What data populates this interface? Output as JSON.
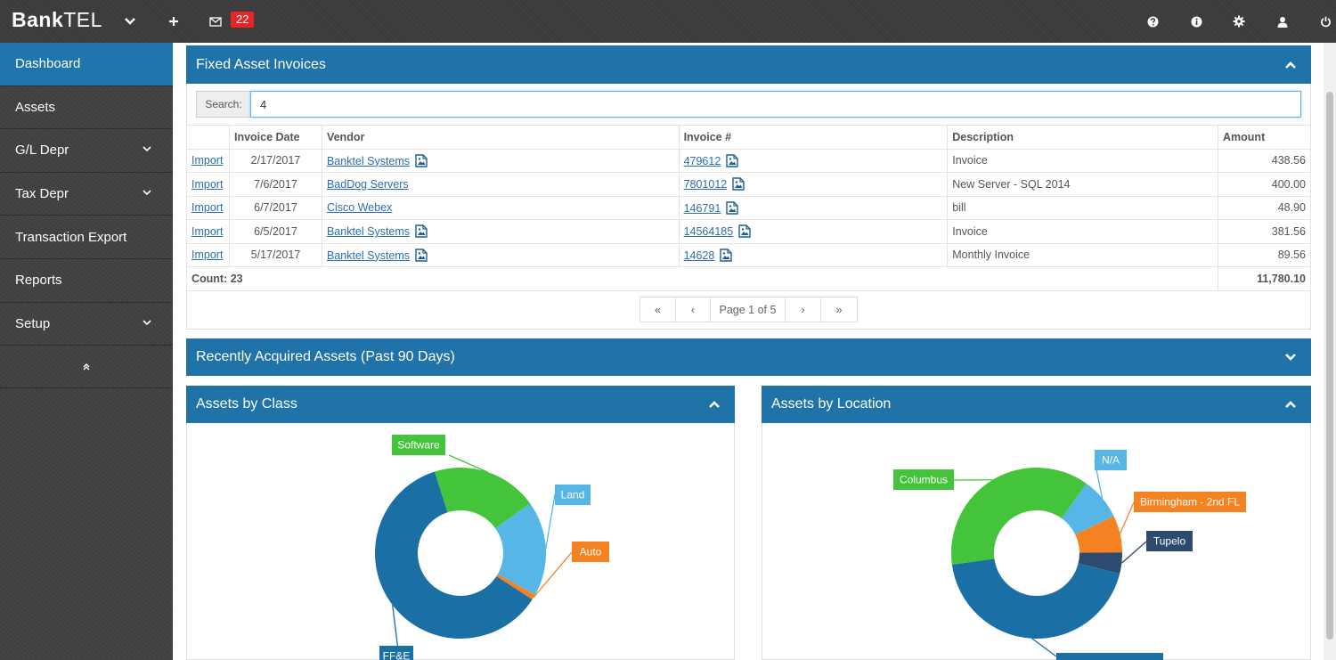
{
  "app": {
    "brand_bold": "Bank",
    "brand_rest": "TEL",
    "mail_count": "22"
  },
  "icons": {
    "dropdown": "chevron-down-icon",
    "add": "plus-icon",
    "mail": "envelope-icon",
    "help": "question-circle-icon",
    "info": "info-circle-icon",
    "settings": "gear-icon",
    "user": "user-icon",
    "power": "power-icon"
  },
  "sidebar": {
    "items": [
      {
        "label": "Dashboard",
        "active": true,
        "expandable": false
      },
      {
        "label": "Assets",
        "active": false,
        "expandable": false
      },
      {
        "label": "G/L Depr",
        "active": false,
        "expandable": true
      },
      {
        "label": "Tax Depr",
        "active": false,
        "expandable": true
      },
      {
        "label": "Transaction Export",
        "active": false,
        "expandable": false
      },
      {
        "label": "Reports",
        "active": false,
        "expandable": false
      },
      {
        "label": "Setup",
        "active": false,
        "expandable": true
      }
    ]
  },
  "invoices": {
    "title": "Fixed Asset Invoices",
    "search_label": "Search:",
    "search_value": "4",
    "columns": [
      "",
      "Invoice Date",
      "Vendor",
      "Invoice #",
      "Description",
      "Amount"
    ],
    "rows": [
      {
        "action": "Import",
        "date": "2/17/2017",
        "vendor": "Banktel Systems",
        "vendor_doc": true,
        "invoice": "479612",
        "description": "Invoice",
        "amount": "438.56"
      },
      {
        "action": "Import",
        "date": "7/6/2017",
        "vendor": "BadDog Servers",
        "vendor_doc": false,
        "invoice": "7801012",
        "description": "New Server - SQL 2014",
        "amount": "400.00"
      },
      {
        "action": "Import",
        "date": "6/7/2017",
        "vendor": "Cisco Webex",
        "vendor_doc": false,
        "invoice": "146791",
        "description": "bill",
        "amount": "48.90"
      },
      {
        "action": "Import",
        "date": "6/5/2017",
        "vendor": "Banktel Systems",
        "vendor_doc": true,
        "invoice": "14564185",
        "description": "Invoice",
        "amount": "381.56"
      },
      {
        "action": "Import",
        "date": "5/17/2017",
        "vendor": "Banktel Systems",
        "vendor_doc": true,
        "invoice": "14628",
        "description": "Monthly Invoice",
        "amount": "89.56"
      }
    ],
    "count_label": "Count: 23",
    "total": "11,780.10",
    "pager": {
      "first": "«",
      "prev": "‹",
      "page": "Page 1 of 5",
      "next": "›",
      "last": "»"
    }
  },
  "recent": {
    "title": "Recently Acquired Assets (Past 90 Days)"
  },
  "colors": {
    "primary": "#1f73a8",
    "green": "#43c43a",
    "light_blue": "#56b6e6",
    "orange": "#f58220",
    "navy": "#2e4a6e"
  },
  "chart_data": [
    {
      "type": "pie",
      "title": "Assets by Class",
      "donut": true,
      "slices": [
        {
          "label": "Land",
          "value": 18,
          "color": "#56b6e6"
        },
        {
          "label": "Auto",
          "value": 1,
          "color": "#f58220"
        },
        {
          "label": "FF&E",
          "value": 61,
          "color": "#1a6fa5"
        },
        {
          "label": "Software",
          "value": 20,
          "color": "#43c43a"
        }
      ]
    },
    {
      "type": "pie",
      "title": "Assets by Location",
      "donut": true,
      "slices": [
        {
          "label": "N/A",
          "value": 8,
          "color": "#56b6e6"
        },
        {
          "label": "Birmingham - 2nd FL",
          "value": 7,
          "color": "#f58220"
        },
        {
          "label": "Tupelo",
          "value": 4,
          "color": "#2e4a6e"
        },
        {
          "label": "",
          "value": 44,
          "color": "#1a6fa5"
        },
        {
          "label": "Columbus",
          "value": 37,
          "color": "#43c43a"
        }
      ]
    }
  ]
}
